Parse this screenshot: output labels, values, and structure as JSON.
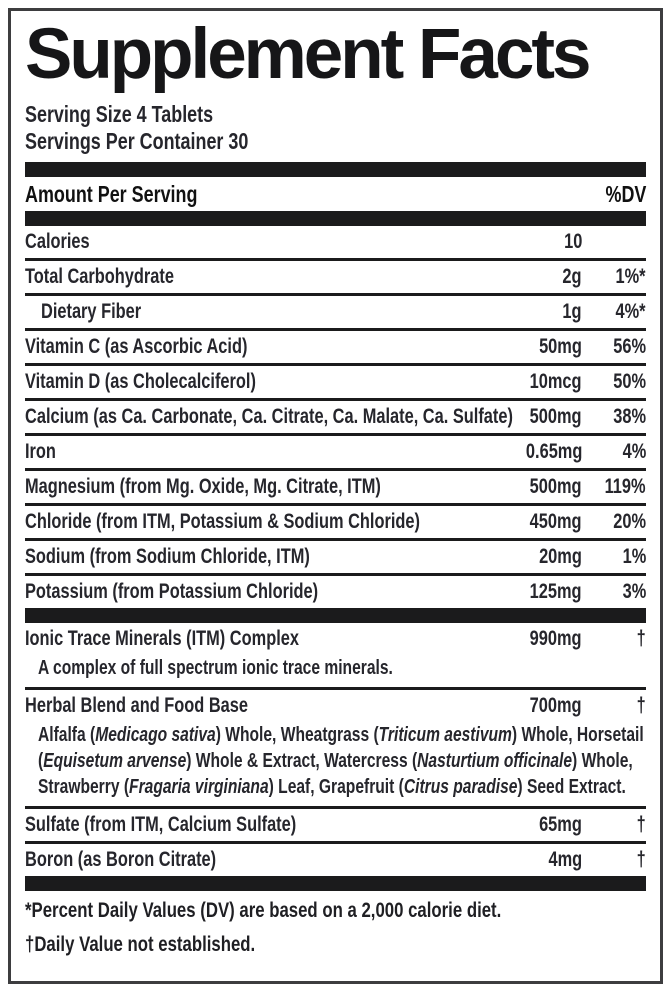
{
  "title": "Supplement Facts",
  "serving": {
    "size": "Serving Size 4 Tablets",
    "per_container": "Servings Per Container 30"
  },
  "header": {
    "amount_label": "Amount Per Serving",
    "dv_label": "%DV"
  },
  "rows": [
    {
      "name": "Calories",
      "amount": "10",
      "dv": ""
    },
    {
      "name": "Total Carbohydrate",
      "amount": "2g",
      "dv": "1%*"
    },
    {
      "name": "Dietary Fiber",
      "amount": "1g",
      "dv": "4%*"
    },
    {
      "name": "Vitamin C (as Ascorbic Acid)",
      "amount": "50mg",
      "dv": "56%"
    },
    {
      "name": "Vitamin D (as Cholecalciferol)",
      "amount": "10mcg",
      "dv": "50%"
    },
    {
      "name": "Calcium (as Ca. Carbonate, Ca. Citrate, Ca. Malate, Ca. Sulfate)",
      "amount": "500mg",
      "dv": "38%"
    },
    {
      "name": "Iron",
      "amount": "0.65mg",
      "dv": "4%"
    },
    {
      "name": "Magnesium (from Mg. Oxide, Mg. Citrate, ITM)",
      "amount": "500mg",
      "dv": "119%"
    },
    {
      "name": "Chloride (from ITM, Potassium & Sodium Chloride)",
      "amount": "450mg",
      "dv": "20%"
    },
    {
      "name": "Sodium (from Sodium Chloride, ITM)",
      "amount": "20mg",
      "dv": "1%"
    },
    {
      "name": "Potassium (from Potassium Chloride)",
      "amount": "125mg",
      "dv": "3%"
    }
  ],
  "sections": [
    {
      "name": "Ionic Trace Minerals (ITM) Complex",
      "amount": "990mg",
      "dv": "†",
      "description_rich": [
        {
          "t": "A complex of full spectrum ionic trace minerals.",
          "i": false
        }
      ]
    },
    {
      "name": "Herbal Blend and Food Base",
      "amount": "700mg",
      "dv": "†",
      "description_rich": [
        {
          "t": "Alfalfa (",
          "i": false
        },
        {
          "t": "Medicago sativa",
          "i": true
        },
        {
          "t": ") Whole, Wheatgrass (",
          "i": false
        },
        {
          "t": "Triticum aestivum",
          "i": true
        },
        {
          "t": ") Whole, Horsetail (",
          "i": false
        },
        {
          "t": "Equisetum arvense",
          "i": true
        },
        {
          "t": ") Whole & Extract, Watercress (",
          "i": false
        },
        {
          "t": "Nasturtium officinale",
          "i": true
        },
        {
          "t": ") Whole, Strawberry (",
          "i": false
        },
        {
          "t": "Fragaria virginiana",
          "i": true
        },
        {
          "t": ") Leaf, Grapefruit (",
          "i": false
        },
        {
          "t": "Citrus paradise",
          "i": true
        },
        {
          "t": ") Seed Extract.",
          "i": false
        }
      ]
    }
  ],
  "extra_rows": [
    {
      "name": "Sulfate (from ITM, Calcium Sulfate)",
      "amount": "65mg",
      "dv": "†"
    },
    {
      "name": "Boron (as Boron Citrate)",
      "amount": "4mg",
      "dv": "†"
    }
  ],
  "footnotes": [
    "*Percent Daily Values (DV) are based on a 2,000 calorie diet.",
    "†Daily Value not established."
  ],
  "colors": {
    "bar": "#1b1b1c",
    "text": "#26262c",
    "border": "#3d3d3f"
  }
}
